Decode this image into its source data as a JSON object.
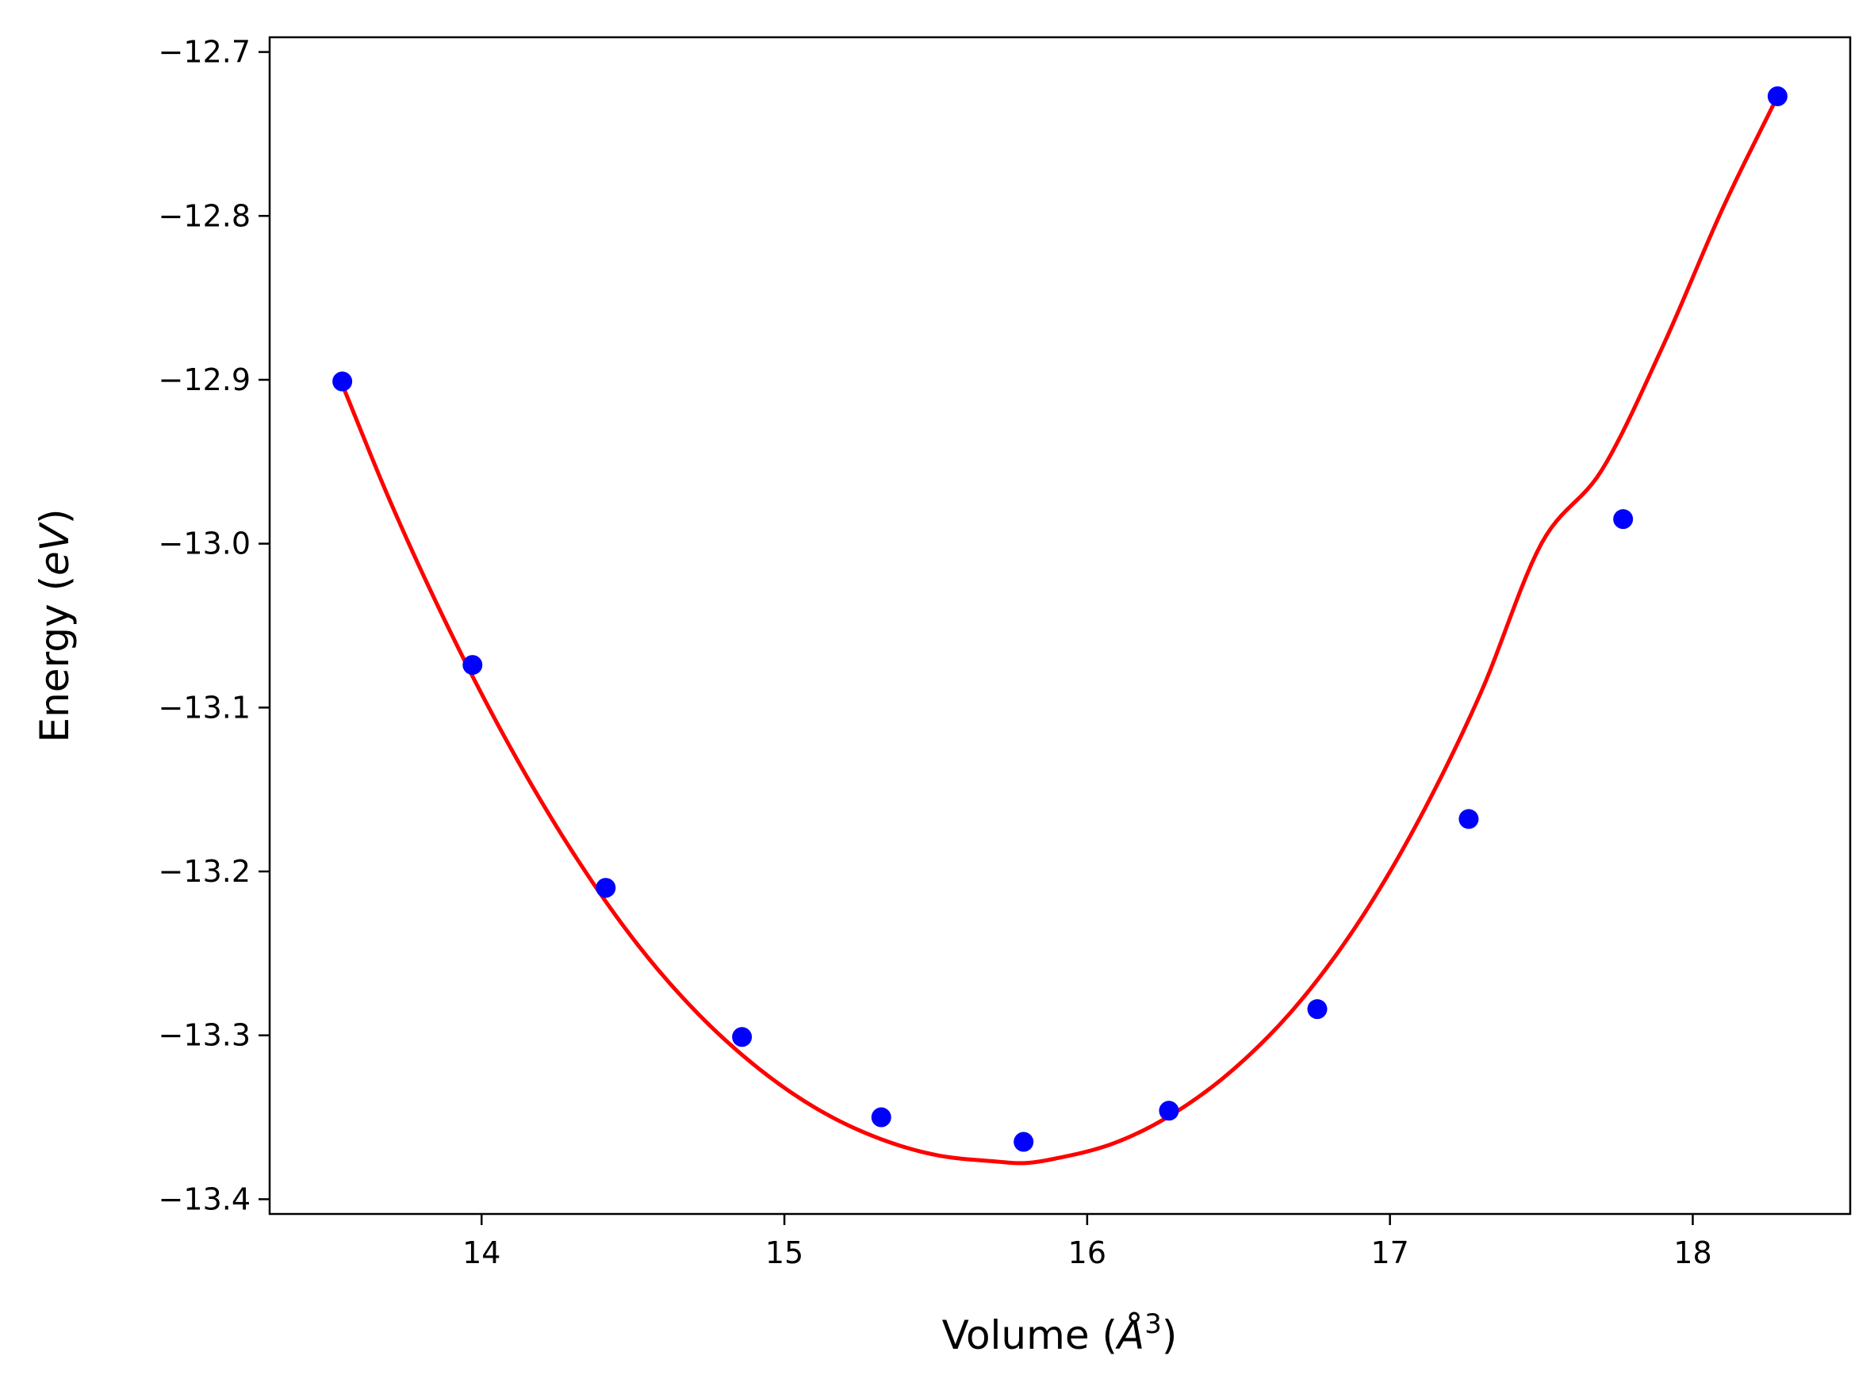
{
  "chart_data": {
    "type": "scatter",
    "title": "",
    "xlabel": "Volume (",
    "xlabel_unit": "Å",
    "xlabel_exp": "3",
    "xlabel_close": ")",
    "ylabel": "Energy (",
    "ylabel_unit": "eV",
    "ylabel_close": ")",
    "xlim": [
      13.3,
      18.52
    ],
    "ylim": [
      -13.409,
      -12.691
    ],
    "xticks": [
      14,
      15,
      16,
      17,
      18
    ],
    "xtick_labels": [
      "14",
      "15",
      "16",
      "17",
      "18"
    ],
    "yticks": [
      -12.7,
      -12.8,
      -12.9,
      -13.0,
      -13.1,
      -13.2,
      -13.3,
      -13.4
    ],
    "ytick_labels": [
      "−12.7",
      "−12.8",
      "−12.9",
      "−13.0",
      "−13.1",
      "−13.2",
      "−13.3",
      "−13.4"
    ],
    "grid": false,
    "series": [
      {
        "kind": "points",
        "color": "#0000ff",
        "x": [
          13.54,
          13.97,
          14.41,
          14.86,
          15.32,
          15.79,
          16.27,
          16.76,
          17.26,
          17.77,
          18.28
        ],
        "y": [
          -12.901,
          -13.074,
          -13.21,
          -13.301,
          -13.35,
          -13.365,
          -13.346,
          -13.284,
          -13.168,
          -12.985,
          -12.727
        ]
      },
      {
        "kind": "fit-curve",
        "color": "#ff0000",
        "x": [
          13.54,
          13.7,
          13.9,
          14.1,
          14.3,
          14.5,
          14.7,
          14.9,
          15.1,
          15.3,
          15.5,
          15.7,
          15.78,
          15.9,
          16.1,
          16.3,
          16.5,
          16.7,
          16.9,
          17.1,
          17.3,
          17.5,
          17.7,
          17.9,
          18.1,
          18.28
        ],
        "y": [
          -12.903,
          -12.975,
          -13.055,
          -13.126,
          -13.188,
          -13.241,
          -13.284,
          -13.318,
          -13.344,
          -13.362,
          -13.373,
          -13.377,
          -13.378,
          -13.375,
          -13.365,
          -13.346,
          -13.318,
          -13.28,
          -13.23,
          -13.167,
          -13.091,
          -13.0,
          -12.955,
          -12.88,
          -12.795,
          -12.727
        ]
      }
    ]
  }
}
